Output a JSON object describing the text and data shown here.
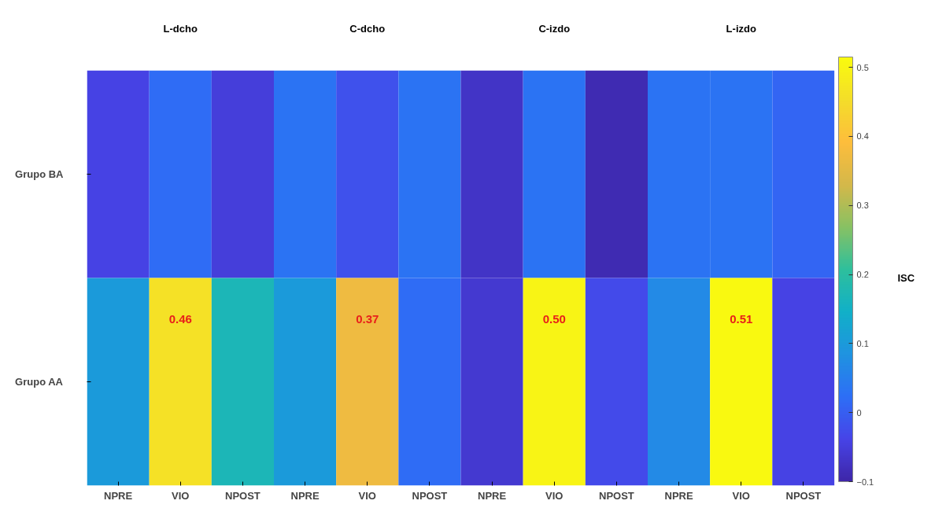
{
  "chart_data": {
    "type": "heatmap",
    "categories": [
      "NPRE",
      "VIO",
      "NPOST",
      "NPRE",
      "VIO",
      "NPOST",
      "NPRE",
      "VIO",
      "NPOST",
      "NPRE",
      "VIO",
      "NPOST"
    ],
    "y_categories": [
      "Grupo BA",
      "Grupo AA"
    ],
    "cells": [
      [
        -0.04,
        0.02,
        -0.05,
        0.03,
        -0.02,
        0.03,
        -0.07,
        0.03,
        -0.09,
        0.03,
        0.03,
        0.01
      ],
      [
        0.1,
        0.46,
        0.17,
        0.1,
        0.37,
        0.02,
        -0.06,
        0.5,
        -0.03,
        0.07,
        0.51,
        -0.04
      ]
    ],
    "cell_labels": [
      [
        null,
        null,
        null,
        null,
        null,
        null,
        null,
        null,
        null,
        null,
        null,
        null
      ],
      [
        null,
        "0.46",
        null,
        null,
        "0.37",
        null,
        null,
        "0.50",
        null,
        null,
        "0.51",
        null
      ]
    ],
    "clim": [
      -0.1,
      0.515
    ],
    "cticks": [
      -0.1,
      0,
      0.1,
      0.2,
      0.3,
      0.4,
      0.5
    ],
    "clabel": "ISC",
    "annotations": [
      "L-dcho",
      "C-dcho",
      "C-izdo",
      "L-izdo"
    ]
  }
}
